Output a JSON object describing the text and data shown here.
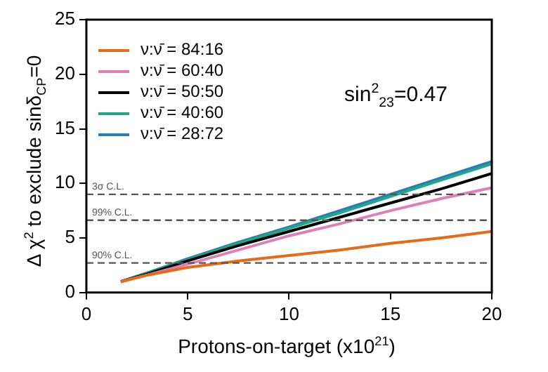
{
  "chart_data": {
    "type": "line",
    "xlabel": "Protons-on-target (x10$^{21}$)",
    "ylabel": "Δ χ$^{2}$ to exclude sinδ$_{CP}$=0",
    "annotations": [
      "sin$^{2}$$_{23}$=0.47"
    ],
    "x": [
      1.7,
      3,
      5,
      7.5,
      10,
      12.5,
      15,
      17.5,
      20
    ],
    "series": [
      {
        "name": "ν:ν̄ = 84:16",
        "color": "#e66a1a",
        "values": [
          1.0,
          1.6,
          2.3,
          2.9,
          3.4,
          3.9,
          4.5,
          5.0,
          5.6
        ]
      },
      {
        "name": "ν:ν̄ = 60:40",
        "color": "#dd80b8",
        "values": [
          1.0,
          1.6,
          2.6,
          3.9,
          5.2,
          6.3,
          7.5,
          8.6,
          9.6
        ]
      },
      {
        "name": "ν:ν̄ = 50:50",
        "color": "#000000",
        "values": [
          1.0,
          1.7,
          2.9,
          4.3,
          5.6,
          6.9,
          8.2,
          9.5,
          10.9
        ]
      },
      {
        "name": "ν:ν̄ = 40:60",
        "color": "#1fa883",
        "values": [
          1.0,
          1.8,
          3.0,
          4.5,
          5.9,
          7.3,
          8.8,
          10.3,
          11.8
        ]
      },
      {
        "name": "ν:ν̄ = 28:72",
        "color": "#2b7bb8",
        "values": [
          1.0,
          1.8,
          3.1,
          4.6,
          6.0,
          7.5,
          9.0,
          10.5,
          12.0
        ]
      }
    ],
    "xlim": [
      0,
      20
    ],
    "xticks": [
      0,
      5,
      10,
      15,
      20
    ],
    "ylim": [
      0,
      25
    ],
    "yticks": [
      0,
      5,
      10,
      15,
      20,
      25
    ],
    "ref_lines": [
      {
        "axis": "y",
        "value": 9,
        "label": "3σ C.L.",
        "color": "#555555",
        "line_style": "dashed"
      },
      {
        "axis": "y",
        "value": 6.63,
        "label": "99% C.L.",
        "color": "#555555",
        "line_style": "dashed"
      },
      {
        "axis": "y",
        "value": 2.71,
        "label": "90% C.L.",
        "color": "#555555",
        "line_style": "dashed"
      }
    ],
    "grid": false,
    "legend": "top left",
    "marker": "none",
    "line_style": "solid"
  }
}
